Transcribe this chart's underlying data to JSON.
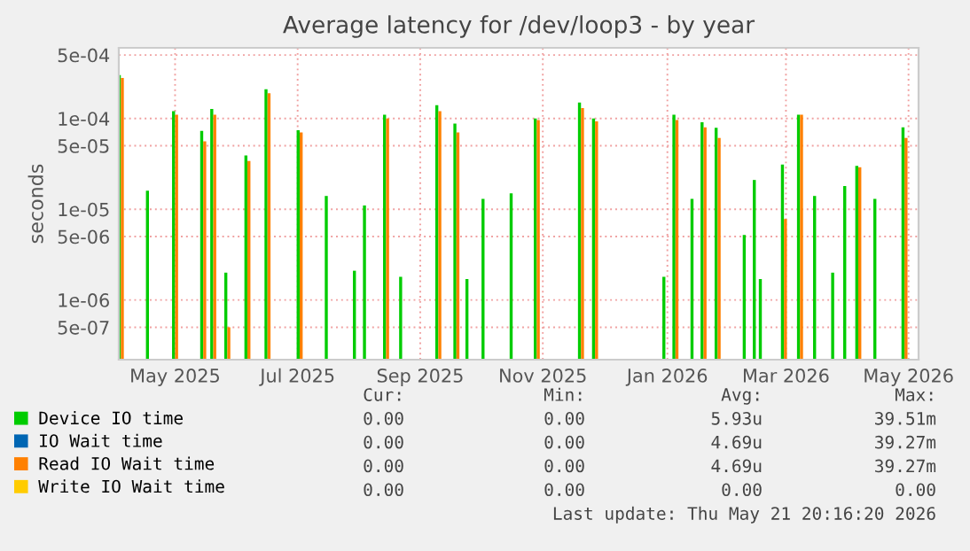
{
  "chart_data": {
    "type": "bar",
    "title": "Average latency for /dev/loop3 - by year",
    "ylabel": "seconds",
    "x": [
      "2025-04-19",
      "2025-05-03",
      "2025-05-16",
      "2025-05-30",
      "2025-06-04",
      "2025-06-11",
      "2025-06-21",
      "2025-07-01",
      "2025-07-17",
      "2025-07-31",
      "2025-08-14",
      "2025-08-19",
      "2025-08-29",
      "2025-09-06",
      "2025-09-24",
      "2025-10-03",
      "2025-10-09",
      "2025-10-17",
      "2025-10-31",
      "2025-11-12",
      "2025-12-04",
      "2025-12-11",
      "2026-01-15",
      "2026-01-20",
      "2026-01-29",
      "2026-02-03",
      "2026-02-10",
      "2026-02-24",
      "2026-03-01",
      "2026-03-04",
      "2026-03-15",
      "2026-03-23",
      "2026-03-31",
      "2026-04-09",
      "2026-04-15",
      "2026-04-21",
      "2026-04-30",
      "2026-05-14"
    ],
    "series": [
      {
        "name": "Device IO time",
        "color": "#00cc00",
        "values": [
          0.0003,
          1.6e-05,
          0.00012,
          7.3e-05,
          0.000127,
          2e-06,
          3.9e-05,
          0.00021,
          7.4e-05,
          1.4e-05,
          2.1e-06,
          1.1e-05,
          0.00011,
          1.8e-06,
          0.00014,
          8.8e-05,
          1.7e-06,
          1.3e-05,
          1.5e-05,
          0.0001,
          0.00015,
          0.0001,
          1.8e-06,
          0.00011,
          1.3e-05,
          9.1e-05,
          7.9e-05,
          5.2e-06,
          2.1e-05,
          1.7e-06,
          3.1e-05,
          0.00011,
          1.4e-05,
          2e-06,
          1.8e-05,
          3e-05,
          1.3e-05,
          8e-05
        ]
      },
      {
        "name": "IO Wait time",
        "color": "#0066b3",
        "values": [
          null,
          null,
          null,
          null,
          null,
          null,
          null,
          null,
          null,
          null,
          null,
          null,
          null,
          null,
          null,
          null,
          null,
          null,
          null,
          null,
          null,
          null,
          null,
          null,
          null,
          null,
          null,
          null,
          null,
          null,
          null,
          null,
          null,
          null,
          null,
          null,
          null,
          null
        ]
      },
      {
        "name": "Read IO Wait time",
        "color": "#ff8000",
        "values": [
          0.00028,
          null,
          0.00011,
          5.6e-05,
          0.00011,
          5e-07,
          3.4e-05,
          0.00019,
          7e-05,
          null,
          null,
          null,
          0.0001,
          null,
          0.00012,
          7e-05,
          null,
          null,
          null,
          9.6e-05,
          0.00013,
          9.3e-05,
          null,
          9.6e-05,
          null,
          8e-05,
          6.1e-05,
          null,
          null,
          null,
          7.8e-06,
          0.00011,
          null,
          null,
          null,
          2.9e-05,
          null,
          6.1e-05
        ]
      },
      {
        "name": "Write IO Wait time",
        "color": "#ffcc00",
        "values": [
          null,
          null,
          null,
          null,
          null,
          null,
          null,
          null,
          null,
          null,
          null,
          null,
          null,
          null,
          null,
          null,
          null,
          null,
          null,
          null,
          null,
          null,
          null,
          null,
          null,
          null,
          null,
          null,
          null,
          null,
          null,
          null,
          null,
          null,
          null,
          null,
          null,
          null
        ]
      }
    ],
    "log": "y",
    "ylim": [
      2.2e-07,
      0.0006
    ],
    "yticks": [
      {
        "value": 5e-07,
        "label": "5e-07"
      },
      {
        "value": 1e-06,
        "label": "1e-06"
      },
      {
        "value": 5e-06,
        "label": "5e-06"
      },
      {
        "value": 1e-05,
        "label": "1e-05"
      },
      {
        "value": 5e-05,
        "label": "5e-05"
      },
      {
        "value": 0.0001,
        "label": "1e-04"
      },
      {
        "value": 0.0005,
        "label": "5e-04"
      }
    ],
    "xlim": [
      "2025-04-18",
      "2026-05-21"
    ],
    "xticks": [
      {
        "value": "2025-05-16",
        "label": "May 2025"
      },
      {
        "value": "2025-07-16",
        "label": "Jul 2025"
      },
      {
        "value": "2025-09-15",
        "label": "Sep 2025"
      },
      {
        "value": "2025-11-15",
        "label": "Nov 2025"
      },
      {
        "value": "2026-01-16",
        "label": "Jan 2026"
      },
      {
        "value": "2026-03-16",
        "label": "Mar 2026"
      },
      {
        "value": "2026-05-16",
        "label": "May 2026"
      }
    ],
    "grid": true,
    "legend": "bottom",
    "annotations": [
      "Cur:",
      "Min:",
      "Avg:",
      "Max:",
      "0.00",
      "0.00",
      "5.93u",
      "39.51m",
      "0.00",
      "0.00",
      "4.69u",
      "39.27m",
      "0.00",
      "0.00",
      "4.69u",
      "39.27m",
      "0.00",
      "0.00",
      "0.00",
      "0.00",
      "Last update: Thu May 21 20:16:20 2026"
    ]
  }
}
